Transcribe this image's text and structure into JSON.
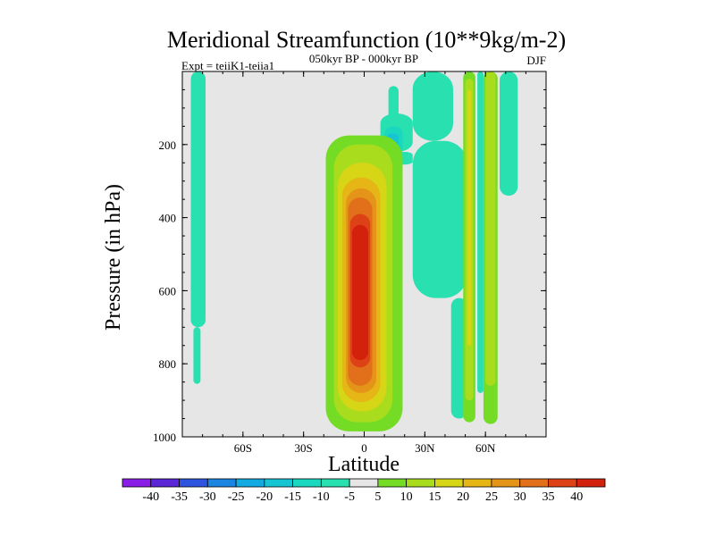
{
  "chart_data": {
    "type": "contour",
    "title": "Meridional Streamfunction (10**9kg/m-2)",
    "left_string": "Expt = teiiK1-teiia1",
    "center_string": "050kyr BP - 000kyr BP",
    "right_string": "DJF",
    "xlabel": "Latitude",
    "ylabel": "Pressure (in hPa)",
    "xlim": [
      -90,
      90
    ],
    "ylim": [
      1000,
      0
    ],
    "y_inverted": true,
    "x_ticks": [
      {
        "value": -60,
        "label": "60S"
      },
      {
        "value": -30,
        "label": "30S"
      },
      {
        "value": 0,
        "label": "0"
      },
      {
        "value": 30,
        "label": "30N"
      },
      {
        "value": 60,
        "label": "60N"
      }
    ],
    "y_ticks": [
      {
        "value": 200,
        "label": "200"
      },
      {
        "value": 400,
        "label": "400"
      },
      {
        "value": 600,
        "label": "600"
      },
      {
        "value": 800,
        "label": "800"
      },
      {
        "value": 1000,
        "label": "1000"
      }
    ],
    "colorbar": {
      "position": "bottom",
      "levels": [
        "-40",
        "-35",
        "-30",
        "-25",
        "-20",
        "-15",
        "-10",
        "-5",
        "5",
        "10",
        "15",
        "20",
        "25",
        "30",
        "35",
        "40"
      ],
      "colors": [
        "#8a1ee6",
        "#5a26d6",
        "#2e55e0",
        "#1a86e2",
        "#12aae0",
        "#16c4d4",
        "#1ad8c0",
        "#28e0b0",
        "#e6e6e6",
        "#74dc24",
        "#aadc1e",
        "#d6d616",
        "#e6b616",
        "#e49418",
        "#e2701a",
        "#dc4216",
        "#d2220c"
      ]
    },
    "cells": [
      {
        "level": -5,
        "x0": -85.8,
        "x1": -78.5,
        "p0": 0,
        "p1": 700
      },
      {
        "level": -5,
        "x0": -84.5,
        "x1": -81.0,
        "p0": 700,
        "p1": 855
      },
      {
        "level": -5,
        "x0": 12,
        "x1": 17,
        "p0": 40,
        "p1": 130
      },
      {
        "level": -5,
        "x0": 8,
        "x1": 24,
        "p0": 115,
        "p1": 220
      },
      {
        "level": -5,
        "x0": 16,
        "x1": 24,
        "p0": 220,
        "p1": 255
      },
      {
        "level": -10,
        "x0": 10,
        "x1": 19,
        "p0": 150,
        "p1": 235
      },
      {
        "level": -15,
        "x0": 11,
        "x1": 17,
        "p0": 170,
        "p1": 210
      },
      {
        "level": -5,
        "x0": 24,
        "x1": 44,
        "p0": 0,
        "p1": 190
      },
      {
        "level": -5,
        "x0": 24,
        "x1": 51,
        "p0": 190,
        "p1": 620
      },
      {
        "level": -5,
        "x0": 43,
        "x1": 51,
        "p0": 620,
        "p1": 950
      },
      {
        "level": 5,
        "x0": -19,
        "x1": 19,
        "p0": 175,
        "p1": 985
      },
      {
        "level": 10,
        "x0": -15,
        "x1": 14,
        "p0": 200,
        "p1": 960
      },
      {
        "level": 15,
        "x0": -13,
        "x1": 11,
        "p0": 250,
        "p1": 930
      },
      {
        "level": 20,
        "x0": -11,
        "x1": 8,
        "p0": 290,
        "p1": 905
      },
      {
        "level": 25,
        "x0": -9,
        "x1": 6,
        "p0": 320,
        "p1": 880
      },
      {
        "level": 30,
        "x0": -8,
        "x1": 4,
        "p0": 345,
        "p1": 860
      },
      {
        "level": 35,
        "x0": -7,
        "x1": 3,
        "p0": 390,
        "p1": 810
      },
      {
        "level": 40,
        "x0": -6,
        "x1": 2,
        "p0": 420,
        "p1": 790
      },
      {
        "level": 5,
        "x0": 49,
        "x1": 55,
        "p0": 0,
        "p1": 960
      },
      {
        "level": 10,
        "x0": 50,
        "x1": 54,
        "p0": 20,
        "p1": 900
      },
      {
        "level": 15,
        "x0": 51,
        "x1": 53,
        "p0": 50,
        "p1": 750
      },
      {
        "level": -5,
        "x0": 56,
        "x1": 59,
        "p0": 0,
        "p1": 880
      },
      {
        "level": 5,
        "x0": 59,
        "x1": 66,
        "p0": 0,
        "p1": 965
      },
      {
        "level": 10,
        "x0": 60,
        "x1": 65,
        "p0": 0,
        "p1": 860
      },
      {
        "level": -5,
        "x0": 67,
        "x1": 76,
        "p0": 0,
        "p1": 340
      }
    ]
  }
}
